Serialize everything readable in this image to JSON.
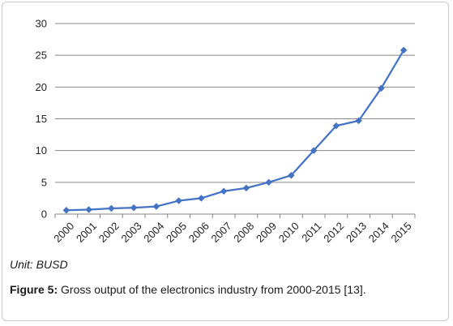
{
  "chart_data": {
    "type": "line",
    "title": "",
    "xlabel": "",
    "ylabel": "",
    "categories": [
      "2000",
      "2001",
      "2002",
      "2003",
      "2004",
      "2005",
      "2006",
      "2007",
      "2008",
      "2009",
      "2010",
      "2011",
      "2012",
      "2013",
      "2014",
      "2015"
    ],
    "series": [
      {
        "values": [
          0.6,
          0.7,
          0.9,
          1.0,
          1.2,
          2.1,
          2.5,
          3.6,
          4.1,
          5.0,
          6.1,
          10.0,
          13.9,
          14.7,
          19.8,
          25.8
        ],
        "color": "#4472c4",
        "marker": "diamond"
      }
    ],
    "ylim": [
      0,
      30
    ],
    "yticks": [
      0,
      5,
      10,
      15,
      20,
      25,
      30
    ],
    "grid": "horizontal",
    "gridColor": "#878787"
  },
  "unit": "Unit: BUSD",
  "caption": {
    "label": "Figure 5:",
    "text": " Gross output of the electronics industry from 2000-2015 [13]."
  }
}
